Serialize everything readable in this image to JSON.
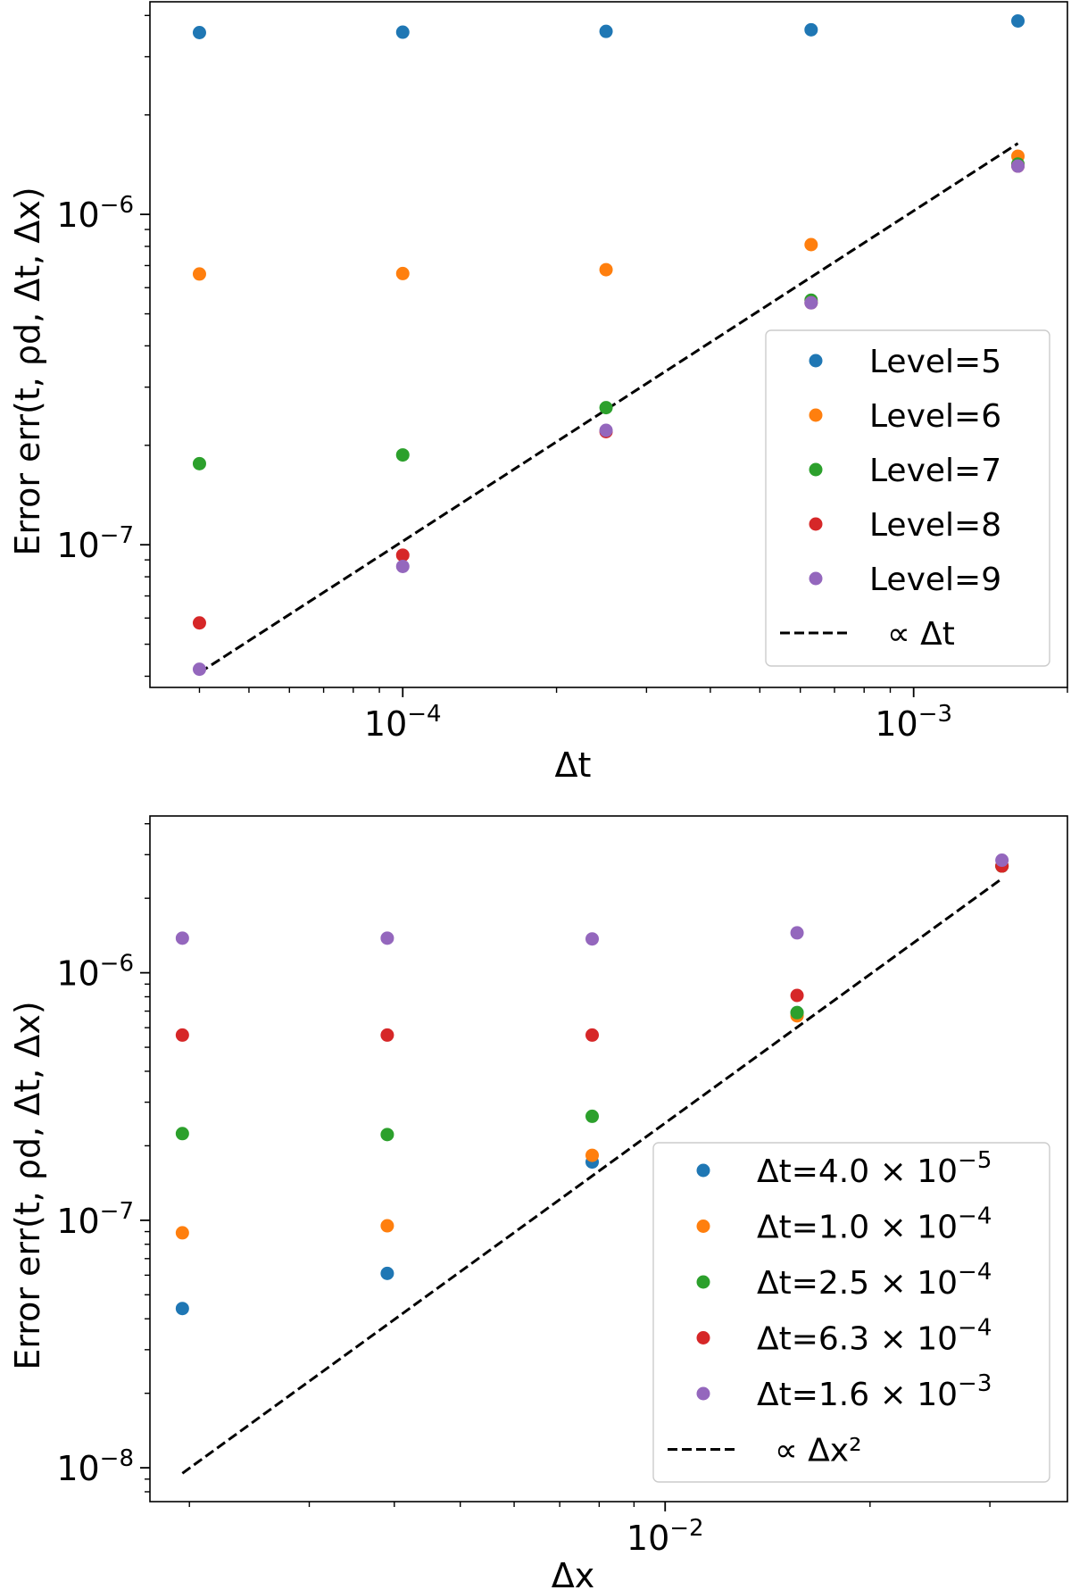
{
  "chart_data": [
    {
      "type": "scatter",
      "xscale": "log",
      "yscale": "log",
      "xlabel": "Δt",
      "ylabel": "Error err(t, ρd, Δt, Δx)",
      "xlim": [
        3.2e-05,
        0.002
      ],
      "ylim": [
        3.7e-08,
        4.4e-06
      ],
      "x_ticks": [
        {
          "value": 0.0001,
          "base": "10",
          "exp": "−4"
        },
        {
          "value": 0.001,
          "base": "10",
          "exp": "−3"
        }
      ],
      "y_ticks": [
        {
          "value": 1e-07,
          "base": "10",
          "exp": "−7"
        },
        {
          "value": 1e-06,
          "base": "10",
          "exp": "−6"
        }
      ],
      "series": [
        {
          "name": "Level=5",
          "color": "#1f77b4",
          "x": [
            4e-05,
            0.0001,
            0.00025,
            0.00063,
            0.0016
          ],
          "y": [
            3.55e-06,
            3.56e-06,
            3.58e-06,
            3.62e-06,
            3.85e-06
          ]
        },
        {
          "name": "Level=6",
          "color": "#ff7f0e",
          "x": [
            4e-05,
            0.0001,
            0.00025,
            0.00063,
            0.0016
          ],
          "y": [
            6.6e-07,
            6.62e-07,
            6.8e-07,
            8.1e-07,
            1.5e-06
          ]
        },
        {
          "name": "Level=7",
          "color": "#2ca02c",
          "x": [
            4e-05,
            0.0001,
            0.00025,
            0.00063,
            0.0016
          ],
          "y": [
            1.76e-07,
            1.87e-07,
            2.6e-07,
            5.5e-07,
            1.42e-06
          ]
        },
        {
          "name": "Level=8",
          "color": "#d62728",
          "x": [
            4e-05,
            0.0001,
            0.00025,
            0.00063,
            0.0016
          ],
          "y": [
            5.8e-08,
            9.3e-08,
            2.2e-07,
            5.4e-07,
            1.4e-06
          ]
        },
        {
          "name": "Level=9",
          "color": "#9467bd",
          "x": [
            4e-05,
            0.0001,
            0.00025,
            0.00063,
            0.0016
          ],
          "y": [
            4.2e-08,
            8.6e-08,
            2.22e-07,
            5.4e-07,
            1.4e-06
          ]
        }
      ],
      "reference_line": {
        "label": "∝ Δt",
        "color": "#000000",
        "x": [
          4e-05,
          0.0016
        ],
        "y": [
          4.1e-08,
          1.64e-06
        ]
      },
      "legend_position": "lower right"
    },
    {
      "type": "scatter",
      "xscale": "log",
      "yscale": "log",
      "xlabel": "Δx",
      "ylabel": "Error err(t, ρd, Δt, Δx)",
      "xlim": [
        0.00175,
        0.039
      ],
      "ylim": [
        7.3e-09,
        4.3e-06
      ],
      "x_ticks": [
        {
          "value": 0.01,
          "base": "10",
          "exp": "−2"
        }
      ],
      "y_ticks": [
        {
          "value": 1e-08,
          "base": "10",
          "exp": "−8"
        },
        {
          "value": 1e-07,
          "base": "10",
          "exp": "−7"
        },
        {
          "value": 1e-06,
          "base": "10",
          "exp": "−6"
        }
      ],
      "series": [
        {
          "name": "Δt=4.0 × 10^−5",
          "label_main": "Δt=4.0 × 10",
          "label_exp": "−5",
          "color": "#1f77b4",
          "x": [
            0.001953,
            0.003906,
            0.0078125,
            0.015625,
            0.03125
          ],
          "y": [
            4.4e-08,
            6.1e-08,
            1.72e-07,
            6.9e-07,
            2.7e-06
          ]
        },
        {
          "name": "Δt=1.0 × 10^−4",
          "label_main": "Δt=1.0 × 10",
          "label_exp": "−4",
          "color": "#ff7f0e",
          "x": [
            0.001953,
            0.003906,
            0.0078125,
            0.015625,
            0.03125
          ],
          "y": [
            8.9e-08,
            9.5e-08,
            1.83e-07,
            6.7e-07,
            2.7e-06
          ]
        },
        {
          "name": "Δt=2.5 × 10^−4",
          "label_main": "Δt=2.5 × 10",
          "label_exp": "−4",
          "color": "#2ca02c",
          "x": [
            0.001953,
            0.003906,
            0.0078125,
            0.015625,
            0.03125
          ],
          "y": [
            2.24e-07,
            2.22e-07,
            2.63e-07,
            6.9e-07,
            2.7e-06
          ]
        },
        {
          "name": "Δt=6.3 × 10^−4",
          "label_main": "Δt=6.3 × 10",
          "label_exp": "−4",
          "color": "#d62728",
          "x": [
            0.001953,
            0.003906,
            0.0078125,
            0.015625,
            0.03125
          ],
          "y": [
            5.6e-07,
            5.6e-07,
            5.6e-07,
            8.1e-07,
            2.7e-06
          ]
        },
        {
          "name": "Δt=1.6 × 10^−3",
          "label_main": "Δt=1.6 × 10",
          "label_exp": "−3",
          "color": "#9467bd",
          "x": [
            0.001953,
            0.003906,
            0.0078125,
            0.015625,
            0.03125
          ],
          "y": [
            1.38e-06,
            1.38e-06,
            1.37e-06,
            1.45e-06,
            2.85e-06
          ]
        }
      ],
      "reference_line": {
        "label": "∝ Δx²",
        "color": "#000000",
        "x": [
          0.001953,
          0.03125
        ],
        "y": [
          9.5e-09,
          2.4e-06
        ]
      },
      "legend_position": "lower right"
    }
  ]
}
